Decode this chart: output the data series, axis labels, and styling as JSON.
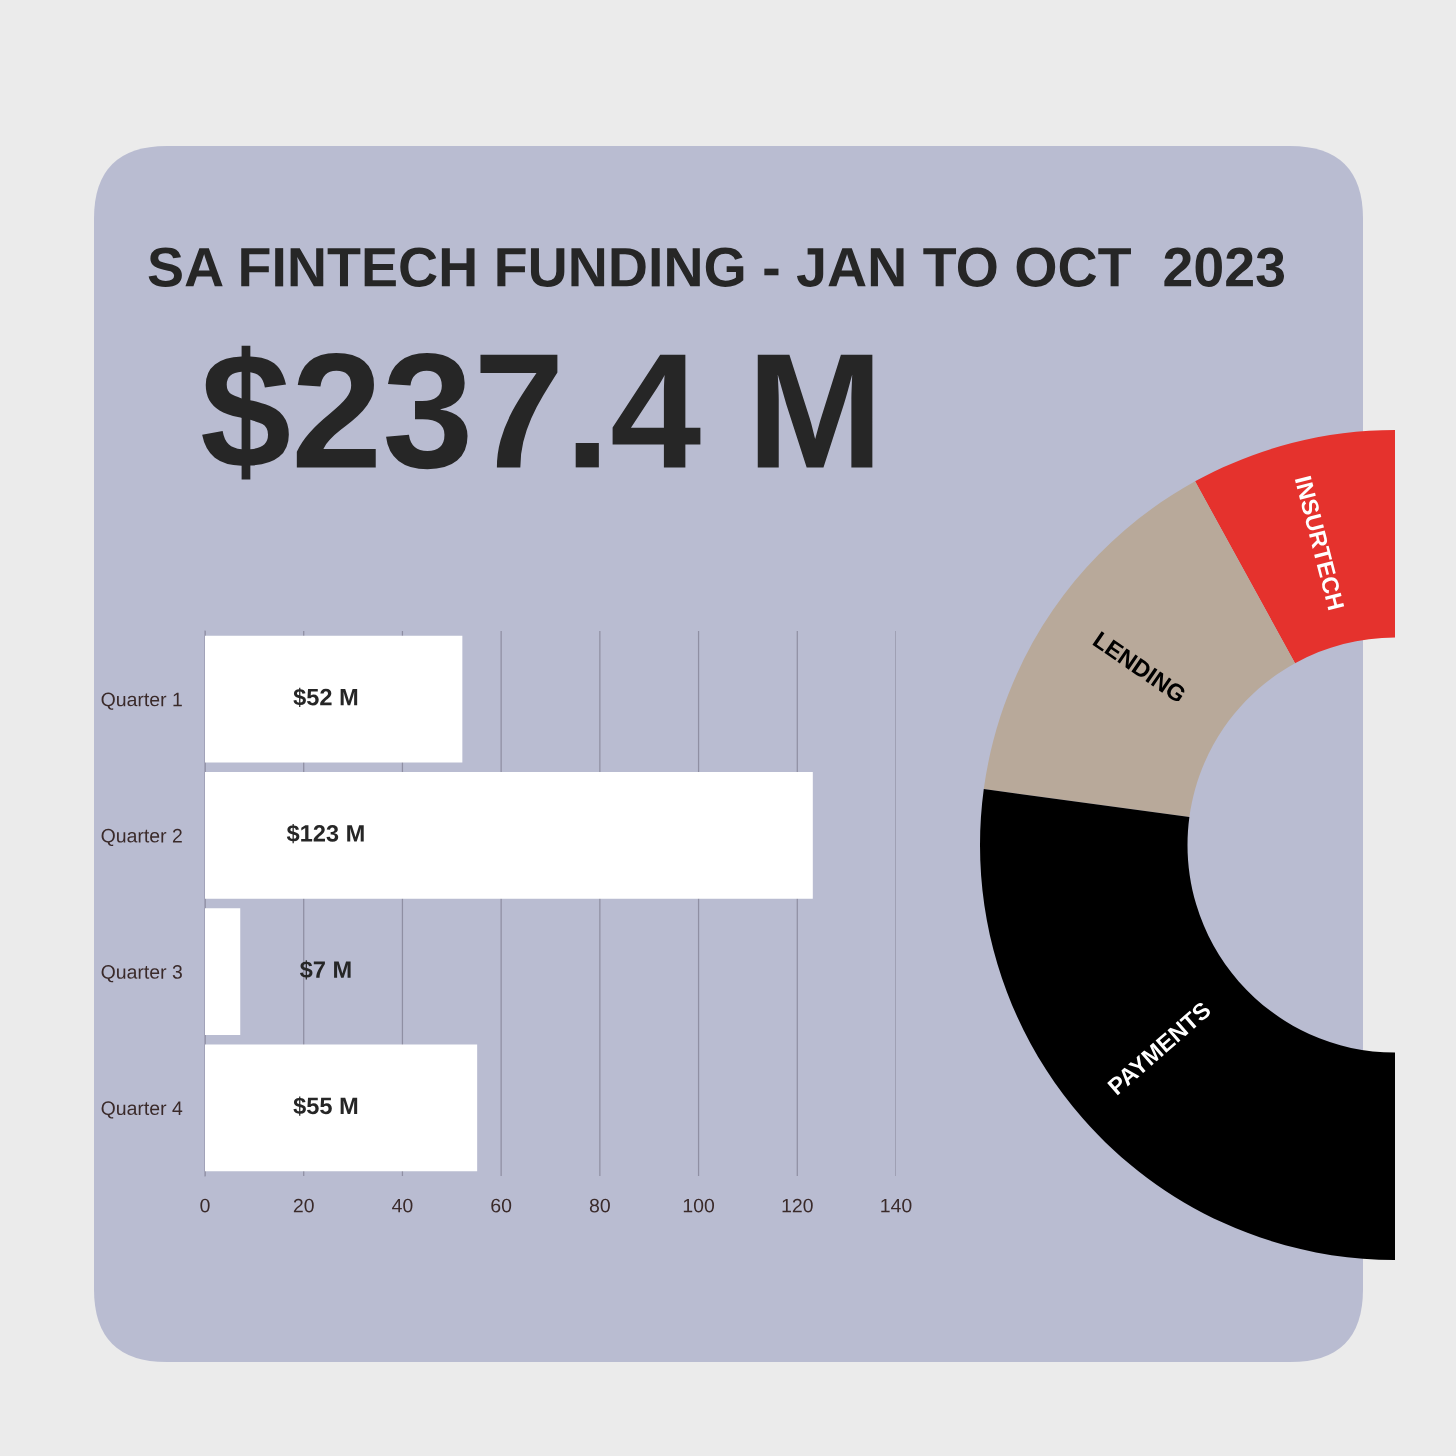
{
  "chart_data": [
    {
      "type": "bar",
      "orientation": "horizontal",
      "title": "SA FINTECH FUNDING - JAN TO OCT  2023",
      "subtitle": "$237.4 M",
      "categories": [
        "Quarter 1",
        "Quarter 2",
        "Quarter 3",
        "Quarter 4"
      ],
      "values": [
        52,
        123,
        7,
        55
      ],
      "color": "#ffffff",
      "value_labels": [
        "$52 M",
        "$123 M",
        "$7 M",
        "$55 M"
      ],
      "xlim": [
        0,
        140
      ],
      "xticks": [
        0,
        20,
        40,
        60,
        80,
        100,
        120,
        140
      ],
      "grid": "x"
    },
    {
      "type": "donut",
      "categories": [
        "INSURTECH",
        "LENDING",
        "PAYMENTS"
      ],
      "values": [
        16,
        29.7,
        54.3
      ],
      "colors": [
        "#e5322d",
        "#b8a99a",
        "#000000"
      ]
    }
  ]
}
